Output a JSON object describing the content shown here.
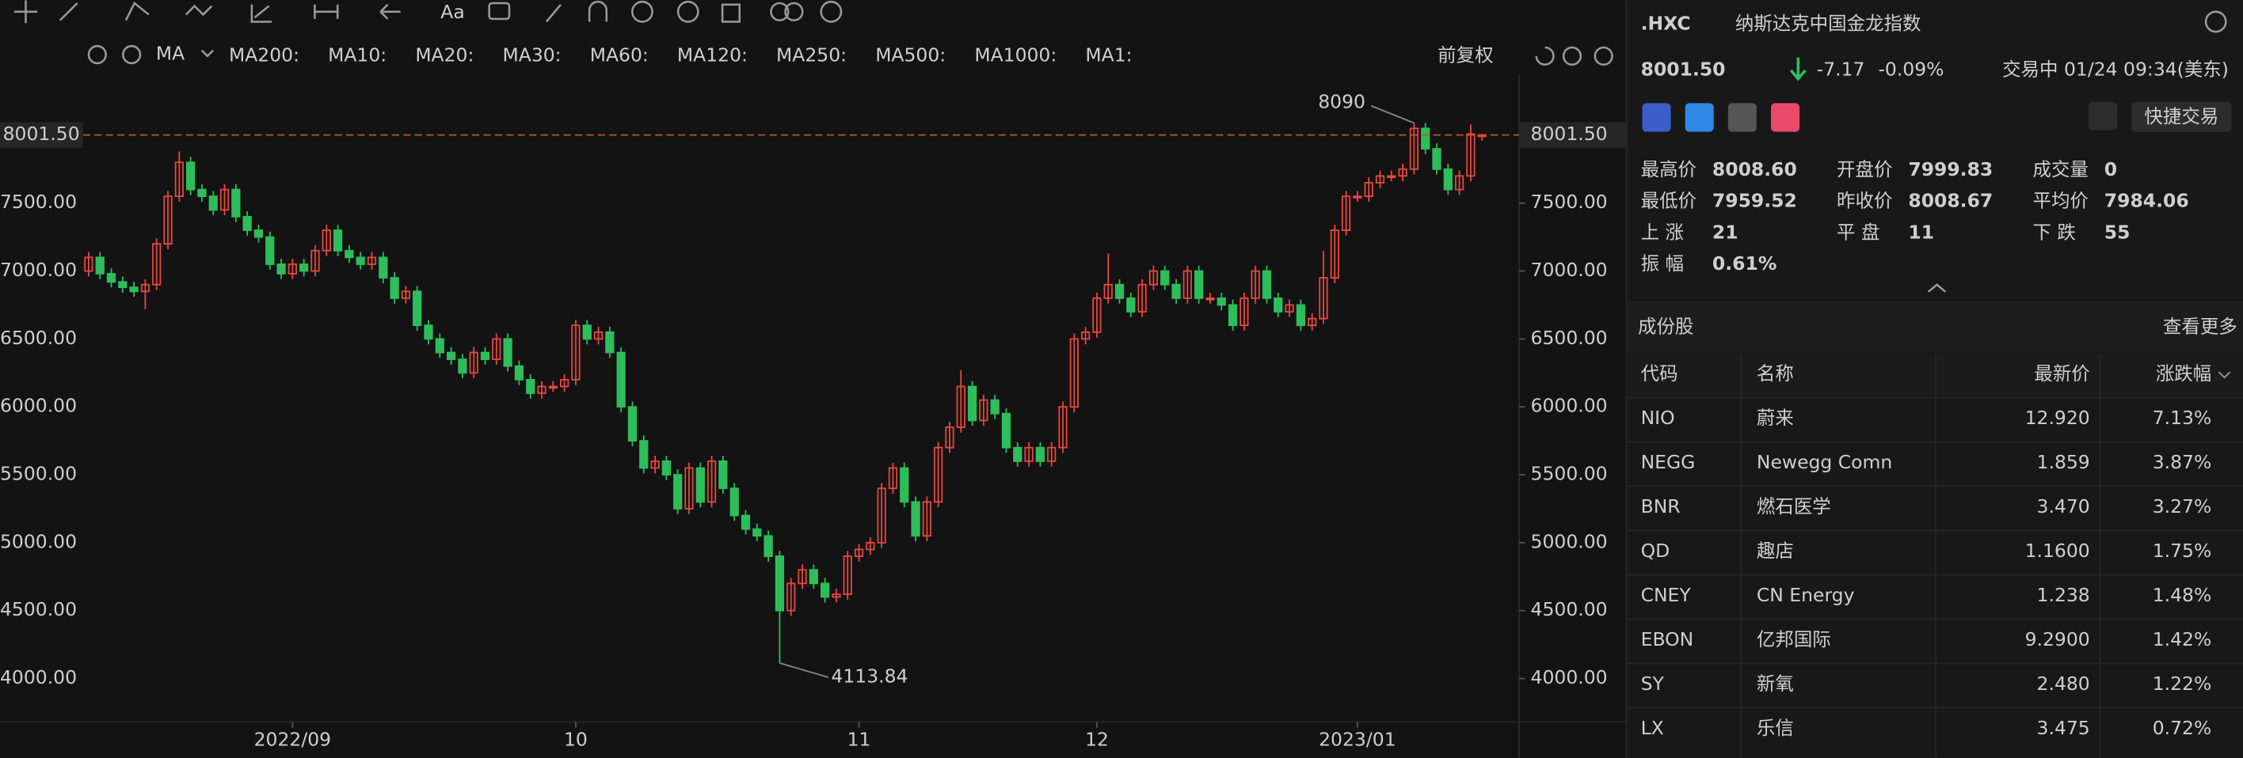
{
  "toolbar": {
    "ma_label": "MA",
    "restore": "前复权",
    "ma_items": [
      {
        "text": "MA200:",
        "color": "#c8752c"
      },
      {
        "text": "MA10:",
        "color": "#3a78c0"
      },
      {
        "text": "MA20:",
        "color": "#9a4fc6"
      },
      {
        "text": "MA30:",
        "color": "#3a6fbf"
      },
      {
        "text": "MA60:",
        "color": "#2e9a62"
      },
      {
        "text": "MA120:",
        "color": "#c9423c"
      },
      {
        "text": "MA250:",
        "color": "#2a9a9a"
      },
      {
        "text": "MA500:",
        "color": "#b9952a"
      },
      {
        "text": "MA1000:",
        "color": "#7448c8"
      },
      {
        "text": "MA1:",
        "color": "#777777"
      }
    ]
  },
  "chart_data": {
    "type": "candlestick",
    "up_color": "#e8473f",
    "down_color": "#2ebd5b",
    "grid": false,
    "categories": [
      null,
      null,
      null,
      null,
      null,
      null,
      null,
      null,
      null,
      null,
      null,
      null,
      null,
      null,
      null,
      null,
      null,
      null,
      "2022/09",
      null,
      null,
      null,
      null,
      null,
      null,
      null,
      null,
      null,
      null,
      null,
      null,
      null,
      null,
      null,
      null,
      null,
      null,
      null,
      null,
      null,
      null,
      null,
      null,
      "10",
      null,
      null,
      null,
      null,
      null,
      null,
      null,
      null,
      null,
      null,
      null,
      null,
      null,
      null,
      null,
      null,
      null,
      null,
      null,
      null,
      null,
      null,
      null,
      null,
      "11",
      null,
      null,
      null,
      null,
      null,
      null,
      null,
      null,
      null,
      null,
      null,
      null,
      null,
      null,
      null,
      null,
      null,
      null,
      null,
      null,
      "12",
      null,
      null,
      null,
      null,
      null,
      null,
      null,
      null,
      null,
      null,
      null,
      null,
      null,
      null,
      null,
      null,
      null,
      null,
      null,
      null,
      null,
      null,
      "2023/01",
      null,
      null,
      null,
      null,
      null,
      null,
      null,
      null,
      null,
      null,
      null
    ],
    "open": [
      7000,
      7100,
      6980,
      6920,
      6880,
      6850,
      6900,
      7200,
      7550,
      7800,
      7600,
      7550,
      7450,
      7600,
      7400,
      7300,
      7250,
      7050,
      6980,
      7050,
      7000,
      7150,
      7300,
      7150,
      7100,
      7050,
      7100,
      6950,
      6800,
      6850,
      6600,
      6500,
      6400,
      6350,
      6250,
      6400,
      6350,
      6500,
      6300,
      6200,
      6100,
      6150,
      6150,
      6200,
      6600,
      6500,
      6550,
      6400,
      6000,
      5750,
      5550,
      5600,
      5500,
      5250,
      5550,
      5300,
      5600,
      5400,
      5200,
      5100,
      5050,
      4900,
      4500,
      4700,
      4800,
      4700,
      4600,
      4620,
      4900,
      4950,
      5000,
      5400,
      5550,
      5300,
      5050,
      5300,
      5700,
      5850,
      6150,
      5900,
      6050,
      5950,
      5700,
      5600,
      5700,
      5600,
      5700,
      6000,
      6500,
      6550,
      6800,
      6900,
      6800,
      6700,
      6900,
      7000,
      6900,
      6800,
      7000,
      6800,
      6800,
      6750,
      6600,
      6800,
      7000,
      6800,
      6700,
      6750,
      6600,
      6650,
      6950,
      7300,
      7550,
      7550,
      7650,
      7700,
      7700,
      7750,
      8050,
      7900,
      7750,
      7600,
      7700,
      7999.83
    ],
    "high": [
      7140,
      7140,
      7020,
      6960,
      6920,
      6940,
      7240,
      7590,
      7880,
      7840,
      7640,
      7590,
      7640,
      7640,
      7440,
      7340,
      7290,
      7090,
      7090,
      7090,
      7190,
      7340,
      7340,
      7190,
      7140,
      7140,
      7140,
      6990,
      6890,
      6890,
      6640,
      6540,
      6440,
      6390,
      6440,
      6440,
      6540,
      6540,
      6340,
      6240,
      6190,
      6190,
      6240,
      6640,
      6640,
      6590,
      6590,
      6440,
      6040,
      5790,
      5640,
      5640,
      5540,
      5590,
      5590,
      5640,
      5640,
      5440,
      5240,
      5140,
      5090,
      4940,
      4740,
      4840,
      4840,
      4740,
      4660,
      4940,
      4990,
      5040,
      5440,
      5590,
      5590,
      5340,
      5340,
      5740,
      5890,
      6270,
      6190,
      6090,
      6090,
      5990,
      5740,
      5740,
      5740,
      5740,
      6040,
      6540,
      6590,
      6840,
      7130,
      6940,
      6840,
      6940,
      7040,
      7040,
      6940,
      7040,
      7040,
      6840,
      6840,
      6790,
      6840,
      7040,
      7040,
      6840,
      6790,
      6790,
      6690,
      7150,
      7340,
      7590,
      7590,
      7690,
      7740,
      7740,
      7790,
      8090,
      8090,
      7940,
      7790,
      7740,
      8079.29,
      8008.6
    ],
    "low": [
      6960,
      6940,
      6880,
      6840,
      6810,
      6720,
      6860,
      7160,
      7510,
      7560,
      7510,
      7410,
      7410,
      7360,
      7260,
      7210,
      7010,
      6940,
      6940,
      6960,
      6960,
      7110,
      7110,
      7060,
      7010,
      7010,
      6910,
      6760,
      6760,
      6560,
      6460,
      6360,
      6310,
      6210,
      6210,
      6310,
      6310,
      6260,
      6160,
      6060,
      6060,
      6110,
      6110,
      6160,
      6460,
      6460,
      6360,
      5960,
      5710,
      5510,
      5510,
      5460,
      5210,
      5210,
      5260,
      5260,
      5360,
      5160,
      5060,
      5010,
      4860,
      4113.84,
      4460,
      4660,
      4660,
      4560,
      4560,
      4580,
      4860,
      4910,
      4960,
      5360,
      5260,
      5010,
      5010,
      5260,
      5660,
      5810,
      5860,
      5860,
      5910,
      5660,
      5560,
      5560,
      5560,
      5560,
      5660,
      5960,
      6460,
      6510,
      6760,
      6760,
      6660,
      6660,
      6860,
      6860,
      6760,
      6760,
      6760,
      6760,
      6710,
      6560,
      6560,
      6760,
      6760,
      6660,
      6660,
      6560,
      6560,
      6610,
      6910,
      7260,
      7510,
      7510,
      7610,
      7660,
      7660,
      7710,
      7860,
      7710,
      7560,
      7560,
      7660,
      7959.52
    ],
    "close": [
      7100,
      6980,
      6920,
      6880,
      6850,
      6900,
      7200,
      7550,
      7800,
      7600,
      7550,
      7450,
      7600,
      7400,
      7300,
      7250,
      7050,
      6980,
      7050,
      7000,
      7150,
      7300,
      7150,
      7100,
      7050,
      7100,
      6950,
      6800,
      6850,
      6600,
      6500,
      6400,
      6350,
      6250,
      6400,
      6350,
      6500,
      6300,
      6200,
      6100,
      6150,
      6150,
      6200,
      6600,
      6500,
      6550,
      6400,
      6000,
      5750,
      5550,
      5600,
      5500,
      5250,
      5550,
      5300,
      5600,
      5400,
      5200,
      5100,
      5050,
      4900,
      4500,
      4700,
      4800,
      4700,
      4600,
      4620,
      4900,
      4950,
      5000,
      5400,
      5550,
      5300,
      5050,
      5300,
      5700,
      5850,
      6150,
      5900,
      6050,
      5950,
      5700,
      5600,
      5700,
      5600,
      5700,
      6000,
      6500,
      6550,
      6800,
      6900,
      6800,
      6700,
      6900,
      7000,
      6900,
      6800,
      7000,
      6800,
      6800,
      6750,
      6600,
      6800,
      7000,
      6800,
      6700,
      6750,
      6600,
      6650,
      6950,
      7300,
      7550,
      7550,
      7650,
      7700,
      7700,
      7750,
      8050,
      7900,
      7750,
      7600,
      7700,
      8008.67,
      8001.5
    ],
    "ylim": [
      3680,
      8446
    ],
    "yticks": [
      {
        "value": 4000,
        "label": "4000.00"
      },
      {
        "value": 4500,
        "label": "4500.00"
      },
      {
        "value": 5000,
        "label": "5000.00"
      },
      {
        "value": 5500,
        "label": "5500.00"
      },
      {
        "value": 6000,
        "label": "6000.00"
      },
      {
        "value": 6500,
        "label": "6500.00"
      },
      {
        "value": 7000,
        "label": "7000.00"
      },
      {
        "value": 7500,
        "label": "7500.00"
      }
    ],
    "last_price": {
      "value": 8001.5,
      "label": "8001.50"
    }
  },
  "quote": {
    "symbol": ".HXC",
    "name": "纳斯达克中国金龙指数",
    "price": "8001.50",
    "change": "-7.17",
    "change_pct": "-0.09%",
    "status": "交易中 01/24 09:34(美东)",
    "quick_trade": "快捷交易"
  },
  "stats": [
    {
      "label": "最高价",
      "value": "8008.60",
      "tone": "down"
    },
    {
      "label": "开盘价",
      "value": "7999.83",
      "tone": "down"
    },
    {
      "label": "成交量",
      "value": "0",
      "tone": "neutral"
    },
    {
      "label": "最低价",
      "value": "7959.52",
      "tone": "down"
    },
    {
      "label": "昨收价",
      "value": "8008.67",
      "tone": "neutral"
    },
    {
      "label": "平均价",
      "value": "7984.06",
      "tone": "down"
    },
    {
      "label": "上 涨",
      "value": "21",
      "tone": "up"
    },
    {
      "label": "平 盘",
      "value": "11",
      "tone": "neutral"
    },
    {
      "label": "下 跌",
      "value": "55",
      "tone": "down"
    },
    {
      "label": "振 幅",
      "value": "0.61%",
      "tone": "neutral"
    }
  ],
  "constituents": {
    "title": "成份股",
    "more": "查看更多",
    "headers": [
      "代码",
      "名称",
      "最新价",
      "涨跌幅"
    ],
    "rows": [
      [
        "NIO",
        "蔚来",
        "12.920",
        "7.13%"
      ],
      [
        "NEGG",
        "Newegg Comn",
        "1.859",
        "3.87%"
      ],
      [
        "BNR",
        "燃石医学",
        "3.470",
        "3.27%"
      ],
      [
        "QD",
        "趣店",
        "1.1600",
        "1.75%"
      ],
      [
        "CNEY",
        "CN Energy",
        "1.238",
        "1.48%"
      ],
      [
        "EBON",
        "亿邦国际",
        "9.2900",
        "1.42%"
      ],
      [
        "SY",
        "新氧",
        "2.480",
        "1.22%"
      ],
      [
        "LX",
        "乐信",
        "3.475",
        "0.72%"
      ]
    ]
  }
}
